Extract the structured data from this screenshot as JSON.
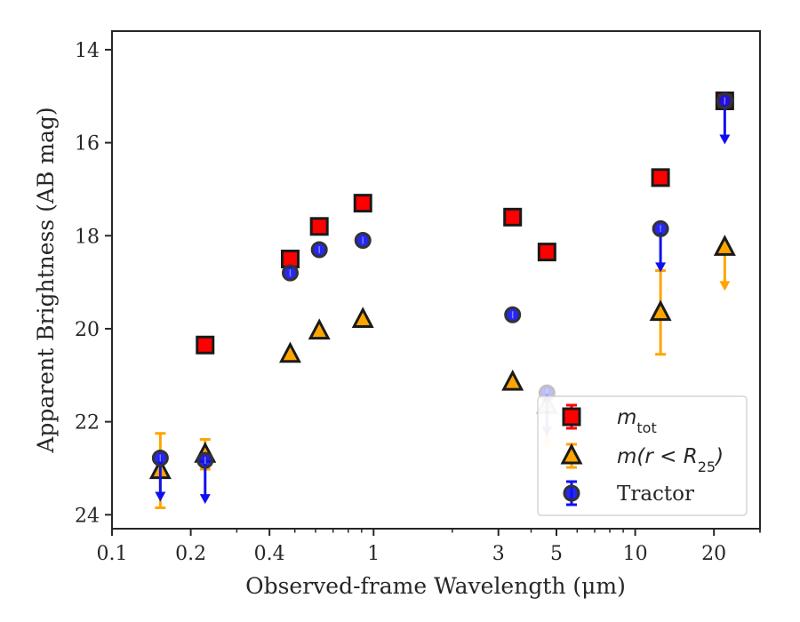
{
  "chart_data": {
    "type": "scatter",
    "title": "",
    "xlabel": "Observed-frame Wavelength (μm)",
    "ylabel": "Apparent Brightness (AB mag)",
    "xscale": "log",
    "xlim": [
      0.1,
      30
    ],
    "ylim": [
      24.3,
      13.6
    ],
    "y_inverted": true,
    "grid": false,
    "legend_position": "lower-right",
    "x_ticks": [
      {
        "value": 0.1,
        "label": "0.1"
      },
      {
        "value": 0.2,
        "label": "0.2"
      },
      {
        "value": 0.4,
        "label": "0.4"
      },
      {
        "value": 1,
        "label": "1"
      },
      {
        "value": 3,
        "label": "3"
      },
      {
        "value": 5,
        "label": "5"
      },
      {
        "value": 10,
        "label": "10"
      },
      {
        "value": 20,
        "label": "20"
      }
    ],
    "y_ticks": [
      {
        "value": 14,
        "label": "14"
      },
      {
        "value": 16,
        "label": "16"
      },
      {
        "value": 18,
        "label": "18"
      },
      {
        "value": 20,
        "label": "20"
      },
      {
        "value": 22,
        "label": "22"
      },
      {
        "value": 24,
        "label": "24"
      }
    ],
    "series": [
      {
        "name": "m_tot",
        "legend_main": "m",
        "legend_sub": "tot",
        "marker": "square",
        "color": "#ff0000",
        "edge_color": "#1a1a1a",
        "points": [
          {
            "x": 0.227,
            "y": 20.35
          },
          {
            "x": 0.48,
            "y": 18.5
          },
          {
            "x": 0.62,
            "y": 17.8
          },
          {
            "x": 0.91,
            "y": 17.3
          },
          {
            "x": 3.4,
            "y": 17.6
          },
          {
            "x": 4.6,
            "y": 18.35
          },
          {
            "x": 12.5,
            "y": 16.75
          },
          {
            "x": 22,
            "y": 15.1
          }
        ]
      },
      {
        "name": "m(r < R25)",
        "legend_main": "m(r < R",
        "legend_sub": "25",
        "legend_tail": ")",
        "marker": "triangle",
        "color": "#ffa500",
        "edge_color": "#1a1a1a",
        "points": [
          {
            "x": 0.153,
            "y": 23.05,
            "err": 0.8
          },
          {
            "x": 0.227,
            "y": 22.7,
            "err": 0.32
          },
          {
            "x": 0.48,
            "y": 20.55
          },
          {
            "x": 0.62,
            "y": 20.05
          },
          {
            "x": 0.91,
            "y": 19.8
          },
          {
            "x": 3.4,
            "y": 21.15
          },
          {
            "x": 4.6,
            "y": 21.65,
            "upper_limit": true,
            "faded": true
          },
          {
            "x": 12.5,
            "y": 19.65,
            "err": 0.9
          },
          {
            "x": 22,
            "y": 18.25,
            "upper_limit": true
          }
        ]
      },
      {
        "name": "Tractor",
        "legend_main": "Tractor",
        "marker": "circle",
        "color": "#1010ee",
        "edge_color": "#333333",
        "points": [
          {
            "x": 0.153,
            "y": 22.78,
            "upper_limit": true
          },
          {
            "x": 0.227,
            "y": 22.83,
            "upper_limit": true
          },
          {
            "x": 0.48,
            "y": 18.8
          },
          {
            "x": 0.62,
            "y": 18.3
          },
          {
            "x": 0.91,
            "y": 18.1
          },
          {
            "x": 3.4,
            "y": 19.7
          },
          {
            "x": 4.6,
            "y": 21.38,
            "upper_limit": true,
            "faded": true
          },
          {
            "x": 12.5,
            "y": 17.85,
            "upper_limit": true
          },
          {
            "x": 22,
            "y": 15.1,
            "upper_limit": true
          }
        ]
      }
    ]
  }
}
